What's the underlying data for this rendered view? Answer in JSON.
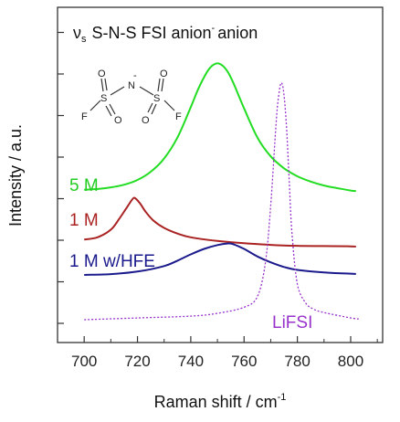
{
  "chart_data": {
    "type": "line",
    "title": "S-N-S FSI anion",
    "title_symbol": "ν",
    "title_symbol_sub": "s",
    "title_superscript": "-",
    "xlabel": "Raman shift / cm",
    "xlabel_superscript": "-1",
    "ylabel": "Intensity / a.u.",
    "xlim": [
      690,
      812
    ],
    "x_ticks": [
      700,
      720,
      740,
      760,
      780,
      800
    ],
    "y_ticks_labeled": false,
    "grid": false,
    "series": [
      {
        "name": "5 M",
        "color": "#22dd22",
        "style": "solid",
        "x": [
          700,
          705,
          710,
          715,
          720,
          725,
          730,
          735,
          740,
          743,
          746,
          748,
          750,
          752,
          754,
          756,
          758,
          760,
          765,
          770,
          775,
          780,
          785,
          790,
          795,
          800,
          802
        ],
        "y": [
          0.25,
          0.28,
          0.34,
          0.44,
          0.62,
          0.93,
          1.43,
          2.22,
          3.37,
          4.1,
          4.68,
          4.93,
          5.02,
          4.93,
          4.68,
          4.28,
          3.8,
          3.32,
          2.22,
          1.51,
          1.06,
          0.76,
          0.56,
          0.41,
          0.31,
          0.22,
          0.2
        ]
      },
      {
        "name": "1 M",
        "color": "#aa2222",
        "style": "solid",
        "x": [
          700,
          705,
          710,
          713,
          716,
          718,
          719,
          721,
          723,
          726,
          730,
          735,
          740,
          750,
          760,
          770,
          780,
          790,
          800,
          802
        ],
        "y": [
          0.25,
          0.33,
          0.6,
          0.96,
          1.38,
          1.66,
          1.72,
          1.52,
          1.24,
          0.92,
          0.66,
          0.46,
          0.33,
          0.2,
          0.12,
          0.06,
          0.03,
          0.02,
          0.01,
          0.0
        ]
      },
      {
        "name": "1 M w/HFE",
        "color": "#1a1a8c",
        "style": "solid",
        "x": [
          700,
          710,
          720,
          730,
          735,
          740,
          745,
          750,
          754,
          756,
          760,
          765,
          770,
          775,
          780,
          790,
          800,
          802
        ],
        "y": [
          0.0,
          0.04,
          0.16,
          0.42,
          0.68,
          0.98,
          1.24,
          1.42,
          1.5,
          1.46,
          1.24,
          0.88,
          0.6,
          0.38,
          0.24,
          0.12,
          0.06,
          0.05
        ]
      },
      {
        "name": "LiFSI",
        "color": "#9933cc",
        "style": "dotted",
        "x": [
          700,
          720,
          740,
          750,
          760,
          765,
          768,
          770,
          772,
          773,
          774,
          775,
          776,
          777,
          778,
          780,
          783,
          786,
          790,
          800,
          803
        ],
        "y": [
          0.0,
          0.05,
          0.1,
          0.18,
          0.35,
          0.65,
          1.6,
          3.2,
          5.5,
          6.3,
          6.65,
          6.3,
          5.3,
          3.8,
          2.4,
          1.0,
          0.48,
          0.3,
          0.2,
          0.05,
          0.02
        ]
      }
    ],
    "legend": "inline-labels-left"
  },
  "molecule": {
    "atoms": [
      "F",
      "S",
      "O",
      "O",
      "N",
      "S",
      "O",
      "O",
      "F"
    ],
    "charge": "-"
  }
}
